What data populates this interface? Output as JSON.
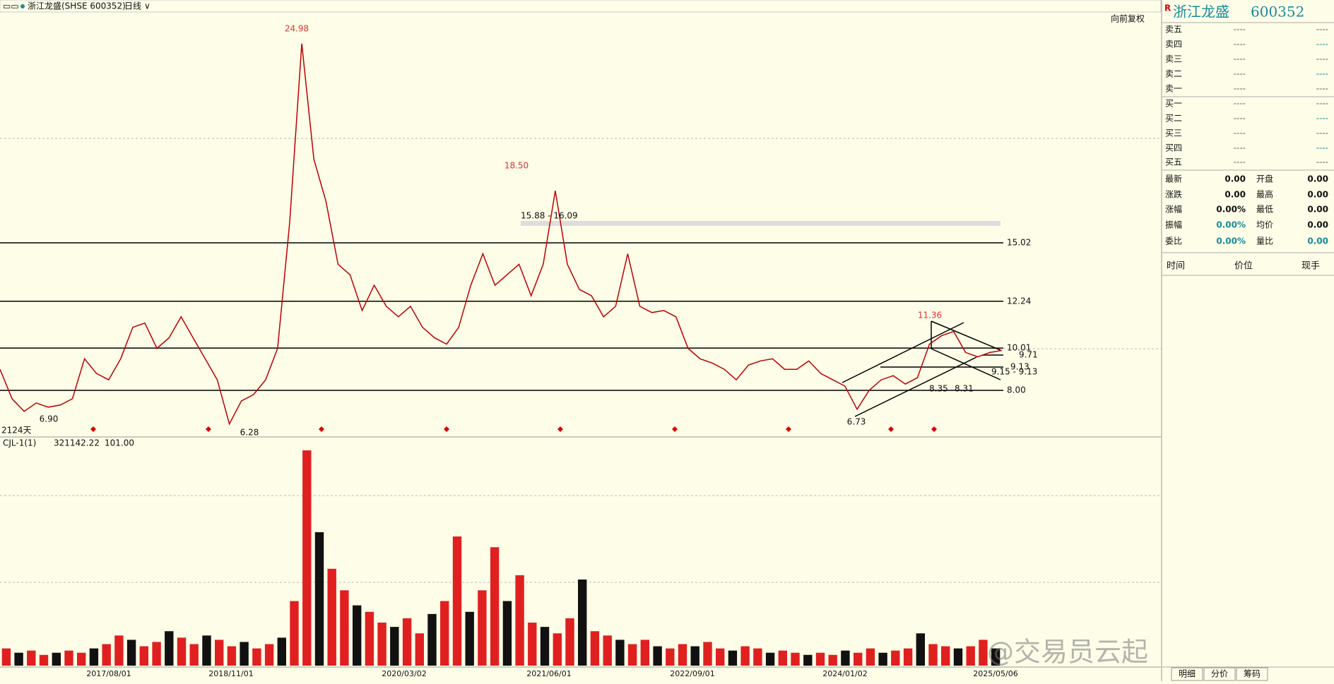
{
  "header": {
    "title": "浙江龙盛(SHSE 600352)",
    "period": "日线",
    "adjust": "向前复权"
  },
  "price_pane": {
    "levels": [
      15.02,
      12.24,
      10.01,
      {
        "value": 8,
        "label": "8.00"
      }
    ],
    "annotations": [
      "24.98",
      "18.50",
      "15.88 - 16.09",
      "6.90",
      "6.28",
      "6.73",
      "11.36",
      "9.71",
      "9.13",
      "9.15 - 9.13",
      "8.35",
      "8.31"
    ],
    "closes": [
      9.0,
      7.6,
      7.0,
      7.4,
      7.2,
      7.3,
      7.6,
      9.5,
      8.8,
      8.5,
      9.5,
      11.0,
      11.2,
      10.0,
      10.5,
      11.5,
      10.5,
      9.5,
      8.5,
      6.4,
      7.5,
      7.8,
      8.5,
      10.0,
      16,
      24.5,
      19,
      17,
      14,
      13.5,
      11.8,
      13.0,
      12.0,
      11.5,
      12.0,
      11.0,
      10.5,
      10.2,
      11.0,
      13.0,
      14.5,
      13.0,
      13.5,
      14.0,
      12.5,
      14.0,
      17.5,
      14.0,
      12.8,
      12.5,
      11.5,
      12.0,
      14.5,
      12.0,
      11.7,
      11.8,
      11.5,
      10.0,
      9.5,
      9.3,
      9.0,
      8.5,
      9.2,
      9.4,
      9.5,
      9.0,
      9.0,
      9.4,
      8.8,
      8.5,
      8.2,
      7.1,
      8.0,
      8.5,
      8.7,
      8.3,
      8.6,
      10.2,
      10.6,
      10.8,
      9.8,
      9.6,
      9.8,
      9.9
    ],
    "day_count": "2124天"
  },
  "volume_pane": {
    "indicator": "CJL-1(1)",
    "readings": [
      "321142.22",
      "101.00"
    ],
    "volume": [
      8,
      6,
      7,
      5,
      6,
      7,
      6,
      8,
      10,
      14,
      12,
      9,
      11,
      16,
      13,
      10,
      14,
      12,
      9,
      11,
      8,
      10,
      13,
      30,
      100,
      62,
      45,
      35,
      28,
      25,
      20,
      18,
      22,
      15,
      24,
      30,
      60,
      25,
      35,
      55,
      30,
      42,
      20,
      18,
      15,
      22,
      40,
      16,
      14,
      12,
      10,
      12,
      9,
      8,
      10,
      9,
      11,
      8,
      7,
      9,
      8,
      6,
      7,
      6,
      5,
      6,
      5,
      7,
      6,
      8,
      6,
      7,
      8,
      15,
      10,
      9,
      8,
      9,
      12,
      8
    ]
  },
  "dates": [
    "2017/08/01",
    "2018/11/01",
    "2020/03/02",
    "2021/06/01",
    "2022/09/01",
    "2024/01/02",
    "2025/05/06"
  ],
  "quote": {
    "flag": "R",
    "name": "浙江龙盛",
    "code": "600352",
    "asks": [
      {
        "label": "卖五",
        "price": "----",
        "volume": "----"
      },
      {
        "label": "卖四",
        "price": "----",
        "volume": "----"
      },
      {
        "label": "卖三",
        "price": "----",
        "volume": "----"
      },
      {
        "label": "卖二",
        "price": "----",
        "volume": "----"
      },
      {
        "label": "卖一",
        "price": "----",
        "volume": "----"
      }
    ],
    "bids": [
      {
        "label": "买一",
        "price": "----",
        "volume": "----"
      },
      {
        "label": "买二",
        "price": "----",
        "volume": "----"
      },
      {
        "label": "买三",
        "price": "----",
        "volume": "----"
      },
      {
        "label": "买四",
        "price": "----",
        "volume": "----"
      },
      {
        "label": "买五",
        "price": "----",
        "volume": "----"
      }
    ],
    "stats": [
      [
        {
          "label": "最新",
          "value": "0.00"
        },
        {
          "label": "开盘",
          "value": "0.00"
        }
      ],
      [
        {
          "label": "涨跌",
          "value": "0.00"
        },
        {
          "label": "最高",
          "value": "0.00"
        }
      ],
      [
        {
          "label": "涨幅",
          "value": "0.00%"
        },
        {
          "label": "最低",
          "value": "0.00"
        }
      ],
      [
        {
          "label": "振幅",
          "value": "0.00%"
        },
        {
          "label": "均价",
          "value": "0.00"
        }
      ],
      [
        {
          "label": "委比",
          "value": "0.00%"
        },
        {
          "label": "量比",
          "value": "0.00"
        }
      ]
    ],
    "columns": [
      "时间",
      "价位",
      "现手"
    ],
    "tabs": [
      "明细",
      "分价",
      "筹码"
    ]
  },
  "watermark": "@交易员云起"
}
